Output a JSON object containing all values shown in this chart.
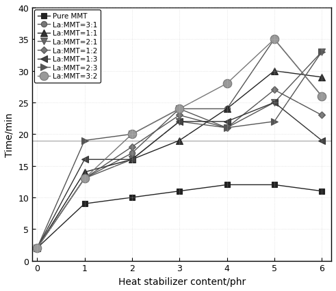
{
  "x": [
    0,
    1,
    2,
    3,
    4,
    5,
    6
  ],
  "series": [
    {
      "label": "Pure MMT",
      "y": [
        2,
        9,
        10,
        11,
        12,
        12,
        11
      ],
      "color": "#222222",
      "marker": "s",
      "markersize": 6,
      "markerfacecolor": "#222222",
      "linestyle": "-"
    },
    {
      "label": "La:MMT=3:1",
      "y": [
        2,
        13,
        17,
        24,
        24,
        35,
        26
      ],
      "color": "#555555",
      "marker": "o",
      "markersize": 6,
      "markerfacecolor": "#777777",
      "linestyle": "-"
    },
    {
      "label": "La:MMT=1:1",
      "y": [
        2,
        14,
        16,
        19,
        24,
        30,
        29
      ],
      "color": "#222222",
      "marker": "^",
      "markersize": 7,
      "markerfacecolor": "#333333",
      "linestyle": "-"
    },
    {
      "label": "La:MMT=2:1",
      "y": [
        2,
        13,
        16,
        22,
        21,
        25,
        33
      ],
      "color": "#555555",
      "marker": "v",
      "markersize": 7,
      "markerfacecolor": "#666666",
      "linestyle": "-"
    },
    {
      "label": "La:MMT=1:2",
      "y": [
        2,
        13,
        18,
        23,
        21,
        27,
        23
      ],
      "color": "#555555",
      "marker": "D",
      "markersize": 5,
      "markerfacecolor": "#777777",
      "linestyle": "-"
    },
    {
      "label": "La:MMT=1:3",
      "y": [
        2,
        16,
        16,
        22,
        22,
        25,
        19
      ],
      "color": "#333333",
      "marker": "<",
      "markersize": 7,
      "markerfacecolor": "#444444",
      "linestyle": "-"
    },
    {
      "label": "La:MMT=2:3",
      "y": [
        2,
        19,
        20,
        24,
        21,
        22,
        33
      ],
      "color": "#555555",
      "marker": ">",
      "markersize": 7,
      "markerfacecolor": "#555555",
      "linestyle": "-"
    },
    {
      "label": "La:MMT=3:2",
      "y": [
        2,
        13,
        20,
        24,
        28,
        35,
        26
      ],
      "color": "#777777",
      "marker": "o",
      "markersize": 9,
      "markerfacecolor": "#999999",
      "linestyle": "-"
    }
  ],
  "xlabel": "Heat stabilizer content/phr",
  "ylabel": "Time/min",
  "xlim": [
    -0.1,
    6.2
  ],
  "ylim": [
    0,
    40
  ],
  "yticks": [
    0,
    5,
    10,
    15,
    20,
    25,
    30,
    35,
    40
  ],
  "xticks": [
    0,
    1,
    2,
    3,
    4,
    5,
    6
  ],
  "hline_y": 19,
  "hline_color": "#aaaaaa",
  "legend_fontsize": 7.5,
  "axis_fontsize": 10,
  "tick_fontsize": 9,
  "linewidth": 1.0
}
